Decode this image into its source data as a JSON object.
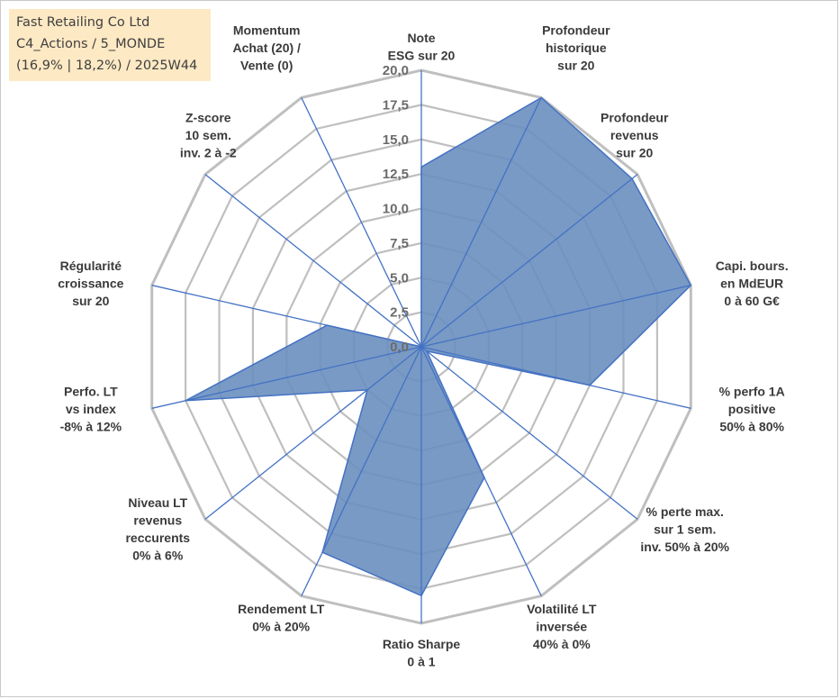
{
  "info": {
    "line1": "Fast Retailing Co Ltd",
    "line2": "C4_Actions / 5_MONDE",
    "line3": "(16,9% | 18,2%) / 2025W44"
  },
  "colors": {
    "fill": "#6a8fbf",
    "stroke": "#4472c4",
    "grid": "#bfbfbf",
    "spoke": "#4472c4",
    "info_bg": "#fde9c4"
  },
  "chart_data": {
    "type": "radar",
    "title": "",
    "rlim": [
      0,
      20
    ],
    "r_ticks": [
      "0,0",
      "2,5",
      "5,0",
      "7,5",
      "10,0",
      "12,5",
      "15,0",
      "17,5",
      "20,0"
    ],
    "axes": [
      {
        "lines": [
          "Note",
          "ESG sur 20"
        ]
      },
      {
        "lines": [
          "Profondeur",
          "historique",
          "sur 20"
        ]
      },
      {
        "lines": [
          "Profondeur",
          "revenus",
          "sur 20"
        ]
      },
      {
        "lines": [
          "Capi. bours.",
          "en MdEUR",
          "0 à 60 G€"
        ]
      },
      {
        "lines": [
          "% perfo 1A",
          "positive",
          "50% à 80%"
        ]
      },
      {
        "lines": [
          "% perte max.",
          "sur 1 sem.",
          "inv. 50% à 20%"
        ]
      },
      {
        "lines": [
          "Volatilité LT",
          "inversée",
          "40% à 0%"
        ]
      },
      {
        "lines": [
          "Ratio Sharpe",
          "0 à 1"
        ]
      },
      {
        "lines": [
          "Rendement LT",
          "0% à 20%"
        ]
      },
      {
        "lines": [
          "Niveau LT",
          "revenus",
          "reccurents",
          "0% à 6%"
        ]
      },
      {
        "lines": [
          "Perfo. LT",
          "vs index",
          "-8% à 12%"
        ]
      },
      {
        "lines": [
          "Régularité",
          "croissance",
          "sur 20"
        ]
      },
      {
        "lines": [
          "Z-score",
          "10 sem.",
          "inv. 2 à -2"
        ]
      },
      {
        "lines": [
          "Momentum",
          "Achat (20) /",
          "Vente (0)"
        ]
      }
    ],
    "series": [
      {
        "name": "Fast Retailing Co Ltd",
        "values": [
          13,
          20,
          19.5,
          20,
          12.5,
          0.5,
          10.5,
          18,
          16.5,
          5,
          17.5,
          7,
          0,
          0
        ]
      }
    ]
  }
}
